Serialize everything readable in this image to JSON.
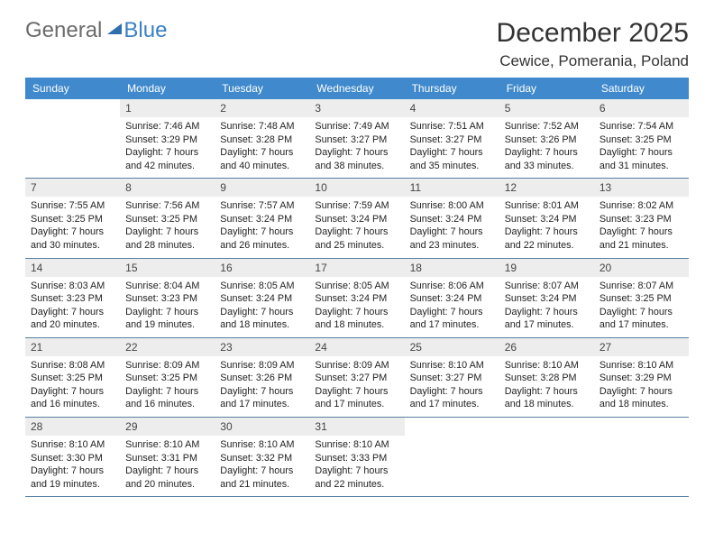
{
  "logo": {
    "general": "General",
    "blue": "Blue"
  },
  "title": "December 2025",
  "location": "Cewice, Pomerania, Poland",
  "header_bg": "#4089cc",
  "header_fg": "#ffffff",
  "daynum_bg": "#ededed",
  "row_border": "#5a7fa3",
  "font_title_size": 30,
  "font_location_size": 17,
  "font_th_size": 12,
  "font_body_size": 10.8,
  "weekdays": [
    "Sunday",
    "Monday",
    "Tuesday",
    "Wednesday",
    "Thursday",
    "Friday",
    "Saturday"
  ],
  "weeks": [
    [
      null,
      {
        "n": "1",
        "sr": "Sunrise: 7:46 AM",
        "ss": "Sunset: 3:29 PM",
        "d1": "Daylight: 7 hours",
        "d2": "and 42 minutes."
      },
      {
        "n": "2",
        "sr": "Sunrise: 7:48 AM",
        "ss": "Sunset: 3:28 PM",
        "d1": "Daylight: 7 hours",
        "d2": "and 40 minutes."
      },
      {
        "n": "3",
        "sr": "Sunrise: 7:49 AM",
        "ss": "Sunset: 3:27 PM",
        "d1": "Daylight: 7 hours",
        "d2": "and 38 minutes."
      },
      {
        "n": "4",
        "sr": "Sunrise: 7:51 AM",
        "ss": "Sunset: 3:27 PM",
        "d1": "Daylight: 7 hours",
        "d2": "and 35 minutes."
      },
      {
        "n": "5",
        "sr": "Sunrise: 7:52 AM",
        "ss": "Sunset: 3:26 PM",
        "d1": "Daylight: 7 hours",
        "d2": "and 33 minutes."
      },
      {
        "n": "6",
        "sr": "Sunrise: 7:54 AM",
        "ss": "Sunset: 3:25 PM",
        "d1": "Daylight: 7 hours",
        "d2": "and 31 minutes."
      }
    ],
    [
      {
        "n": "7",
        "sr": "Sunrise: 7:55 AM",
        "ss": "Sunset: 3:25 PM",
        "d1": "Daylight: 7 hours",
        "d2": "and 30 minutes."
      },
      {
        "n": "8",
        "sr": "Sunrise: 7:56 AM",
        "ss": "Sunset: 3:25 PM",
        "d1": "Daylight: 7 hours",
        "d2": "and 28 minutes."
      },
      {
        "n": "9",
        "sr": "Sunrise: 7:57 AM",
        "ss": "Sunset: 3:24 PM",
        "d1": "Daylight: 7 hours",
        "d2": "and 26 minutes."
      },
      {
        "n": "10",
        "sr": "Sunrise: 7:59 AM",
        "ss": "Sunset: 3:24 PM",
        "d1": "Daylight: 7 hours",
        "d2": "and 25 minutes."
      },
      {
        "n": "11",
        "sr": "Sunrise: 8:00 AM",
        "ss": "Sunset: 3:24 PM",
        "d1": "Daylight: 7 hours",
        "d2": "and 23 minutes."
      },
      {
        "n": "12",
        "sr": "Sunrise: 8:01 AM",
        "ss": "Sunset: 3:24 PM",
        "d1": "Daylight: 7 hours",
        "d2": "and 22 minutes."
      },
      {
        "n": "13",
        "sr": "Sunrise: 8:02 AM",
        "ss": "Sunset: 3:23 PM",
        "d1": "Daylight: 7 hours",
        "d2": "and 21 minutes."
      }
    ],
    [
      {
        "n": "14",
        "sr": "Sunrise: 8:03 AM",
        "ss": "Sunset: 3:23 PM",
        "d1": "Daylight: 7 hours",
        "d2": "and 20 minutes."
      },
      {
        "n": "15",
        "sr": "Sunrise: 8:04 AM",
        "ss": "Sunset: 3:23 PM",
        "d1": "Daylight: 7 hours",
        "d2": "and 19 minutes."
      },
      {
        "n": "16",
        "sr": "Sunrise: 8:05 AM",
        "ss": "Sunset: 3:24 PM",
        "d1": "Daylight: 7 hours",
        "d2": "and 18 minutes."
      },
      {
        "n": "17",
        "sr": "Sunrise: 8:05 AM",
        "ss": "Sunset: 3:24 PM",
        "d1": "Daylight: 7 hours",
        "d2": "and 18 minutes."
      },
      {
        "n": "18",
        "sr": "Sunrise: 8:06 AM",
        "ss": "Sunset: 3:24 PM",
        "d1": "Daylight: 7 hours",
        "d2": "and 17 minutes."
      },
      {
        "n": "19",
        "sr": "Sunrise: 8:07 AM",
        "ss": "Sunset: 3:24 PM",
        "d1": "Daylight: 7 hours",
        "d2": "and 17 minutes."
      },
      {
        "n": "20",
        "sr": "Sunrise: 8:07 AM",
        "ss": "Sunset: 3:25 PM",
        "d1": "Daylight: 7 hours",
        "d2": "and 17 minutes."
      }
    ],
    [
      {
        "n": "21",
        "sr": "Sunrise: 8:08 AM",
        "ss": "Sunset: 3:25 PM",
        "d1": "Daylight: 7 hours",
        "d2": "and 16 minutes."
      },
      {
        "n": "22",
        "sr": "Sunrise: 8:09 AM",
        "ss": "Sunset: 3:25 PM",
        "d1": "Daylight: 7 hours",
        "d2": "and 16 minutes."
      },
      {
        "n": "23",
        "sr": "Sunrise: 8:09 AM",
        "ss": "Sunset: 3:26 PM",
        "d1": "Daylight: 7 hours",
        "d2": "and 17 minutes."
      },
      {
        "n": "24",
        "sr": "Sunrise: 8:09 AM",
        "ss": "Sunset: 3:27 PM",
        "d1": "Daylight: 7 hours",
        "d2": "and 17 minutes."
      },
      {
        "n": "25",
        "sr": "Sunrise: 8:10 AM",
        "ss": "Sunset: 3:27 PM",
        "d1": "Daylight: 7 hours",
        "d2": "and 17 minutes."
      },
      {
        "n": "26",
        "sr": "Sunrise: 8:10 AM",
        "ss": "Sunset: 3:28 PM",
        "d1": "Daylight: 7 hours",
        "d2": "and 18 minutes."
      },
      {
        "n": "27",
        "sr": "Sunrise: 8:10 AM",
        "ss": "Sunset: 3:29 PM",
        "d1": "Daylight: 7 hours",
        "d2": "and 18 minutes."
      }
    ],
    [
      {
        "n": "28",
        "sr": "Sunrise: 8:10 AM",
        "ss": "Sunset: 3:30 PM",
        "d1": "Daylight: 7 hours",
        "d2": "and 19 minutes."
      },
      {
        "n": "29",
        "sr": "Sunrise: 8:10 AM",
        "ss": "Sunset: 3:31 PM",
        "d1": "Daylight: 7 hours",
        "d2": "and 20 minutes."
      },
      {
        "n": "30",
        "sr": "Sunrise: 8:10 AM",
        "ss": "Sunset: 3:32 PM",
        "d1": "Daylight: 7 hours",
        "d2": "and 21 minutes."
      },
      {
        "n": "31",
        "sr": "Sunrise: 8:10 AM",
        "ss": "Sunset: 3:33 PM",
        "d1": "Daylight: 7 hours",
        "d2": "and 22 minutes."
      },
      null,
      null,
      null
    ]
  ]
}
